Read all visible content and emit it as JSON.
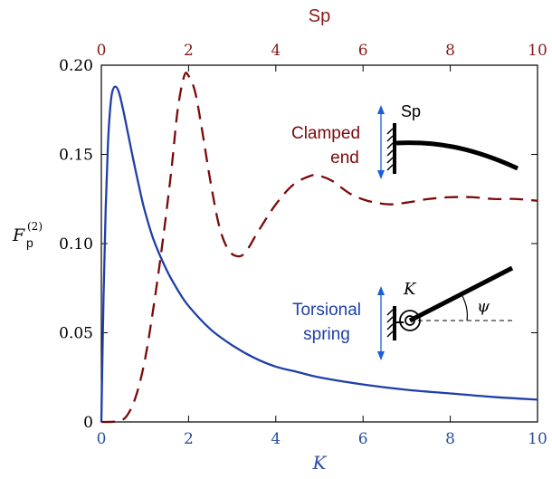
{
  "colors": {
    "bottom_axis": "#2b4fa0",
    "top_axis": "#8b1a1a",
    "left_axis": "#000000",
    "torsional_curve": "#1f3fa8",
    "clamped_curve": "#7a0a0a",
    "arrow": "#1a5fd8",
    "schematic": "#000000"
  },
  "chart_data": {
    "type": "line",
    "x_bottom": {
      "label": "K",
      "range": [
        0,
        10
      ],
      "ticks": [
        "0",
        "2",
        "4",
        "6",
        "8",
        "10"
      ]
    },
    "x_top": {
      "label": "Sp",
      "range": [
        0,
        10
      ],
      "ticks": [
        "0",
        "2",
        "4",
        "6",
        "8",
        "10"
      ]
    },
    "y": {
      "label_main": "F",
      "label_sub": "p",
      "label_sup": "(2)",
      "range": [
        0,
        0.2
      ],
      "ticks": [
        "0",
        "0.05",
        "0.10",
        "0.15",
        "0.20"
      ]
    },
    "series": [
      {
        "annotation_line1": "Torsional",
        "annotation_line2": "spring",
        "axis": "bottom",
        "style": "solid",
        "points": [
          [
            0.0,
            0.0
          ],
          [
            0.05,
            0.07
          ],
          [
            0.1,
            0.12
          ],
          [
            0.15,
            0.155
          ],
          [
            0.2,
            0.175
          ],
          [
            0.25,
            0.185
          ],
          [
            0.32,
            0.188
          ],
          [
            0.4,
            0.185
          ],
          [
            0.5,
            0.175
          ],
          [
            0.6,
            0.163
          ],
          [
            0.75,
            0.145
          ],
          [
            0.9,
            0.128
          ],
          [
            1.0,
            0.118
          ],
          [
            1.2,
            0.102
          ],
          [
            1.5,
            0.085
          ],
          [
            1.75,
            0.074
          ],
          [
            2.0,
            0.065
          ],
          [
            2.5,
            0.052
          ],
          [
            3.0,
            0.043
          ],
          [
            3.5,
            0.036
          ],
          [
            4.0,
            0.031
          ],
          [
            4.5,
            0.028
          ],
          [
            5.0,
            0.025
          ],
          [
            6.0,
            0.021
          ],
          [
            7.0,
            0.018
          ],
          [
            8.0,
            0.016
          ],
          [
            9.0,
            0.014
          ],
          [
            10.0,
            0.0125
          ]
        ]
      },
      {
        "annotation_line1": "Clamped",
        "annotation_line2": "end",
        "axis": "top",
        "style": "dashed",
        "points": [
          [
            0.0,
            0.0
          ],
          [
            0.4,
            0.0005
          ],
          [
            0.6,
            0.004
          ],
          [
            0.8,
            0.015
          ],
          [
            1.0,
            0.035
          ],
          [
            1.2,
            0.065
          ],
          [
            1.4,
            0.1
          ],
          [
            1.6,
            0.14
          ],
          [
            1.75,
            0.175
          ],
          [
            1.9,
            0.194
          ],
          [
            2.0,
            0.194
          ],
          [
            2.15,
            0.185
          ],
          [
            2.3,
            0.165
          ],
          [
            2.5,
            0.135
          ],
          [
            2.7,
            0.11
          ],
          [
            2.9,
            0.097
          ],
          [
            3.1,
            0.093
          ],
          [
            3.3,
            0.095
          ],
          [
            3.6,
            0.107
          ],
          [
            4.0,
            0.122
          ],
          [
            4.4,
            0.133
          ],
          [
            4.8,
            0.138
          ],
          [
            5.0,
            0.138
          ],
          [
            5.3,
            0.135
          ],
          [
            5.7,
            0.128
          ],
          [
            6.1,
            0.124
          ],
          [
            6.6,
            0.122
          ],
          [
            7.0,
            0.123
          ],
          [
            7.5,
            0.125
          ],
          [
            8.0,
            0.126
          ],
          [
            8.5,
            0.126
          ],
          [
            9.0,
            0.125
          ],
          [
            9.5,
            0.125
          ],
          [
            10.0,
            0.124
          ]
        ]
      }
    ]
  },
  "schematic": {
    "clamped_label": "Sp",
    "torsional_label": "K",
    "angle_label": "ψ"
  }
}
